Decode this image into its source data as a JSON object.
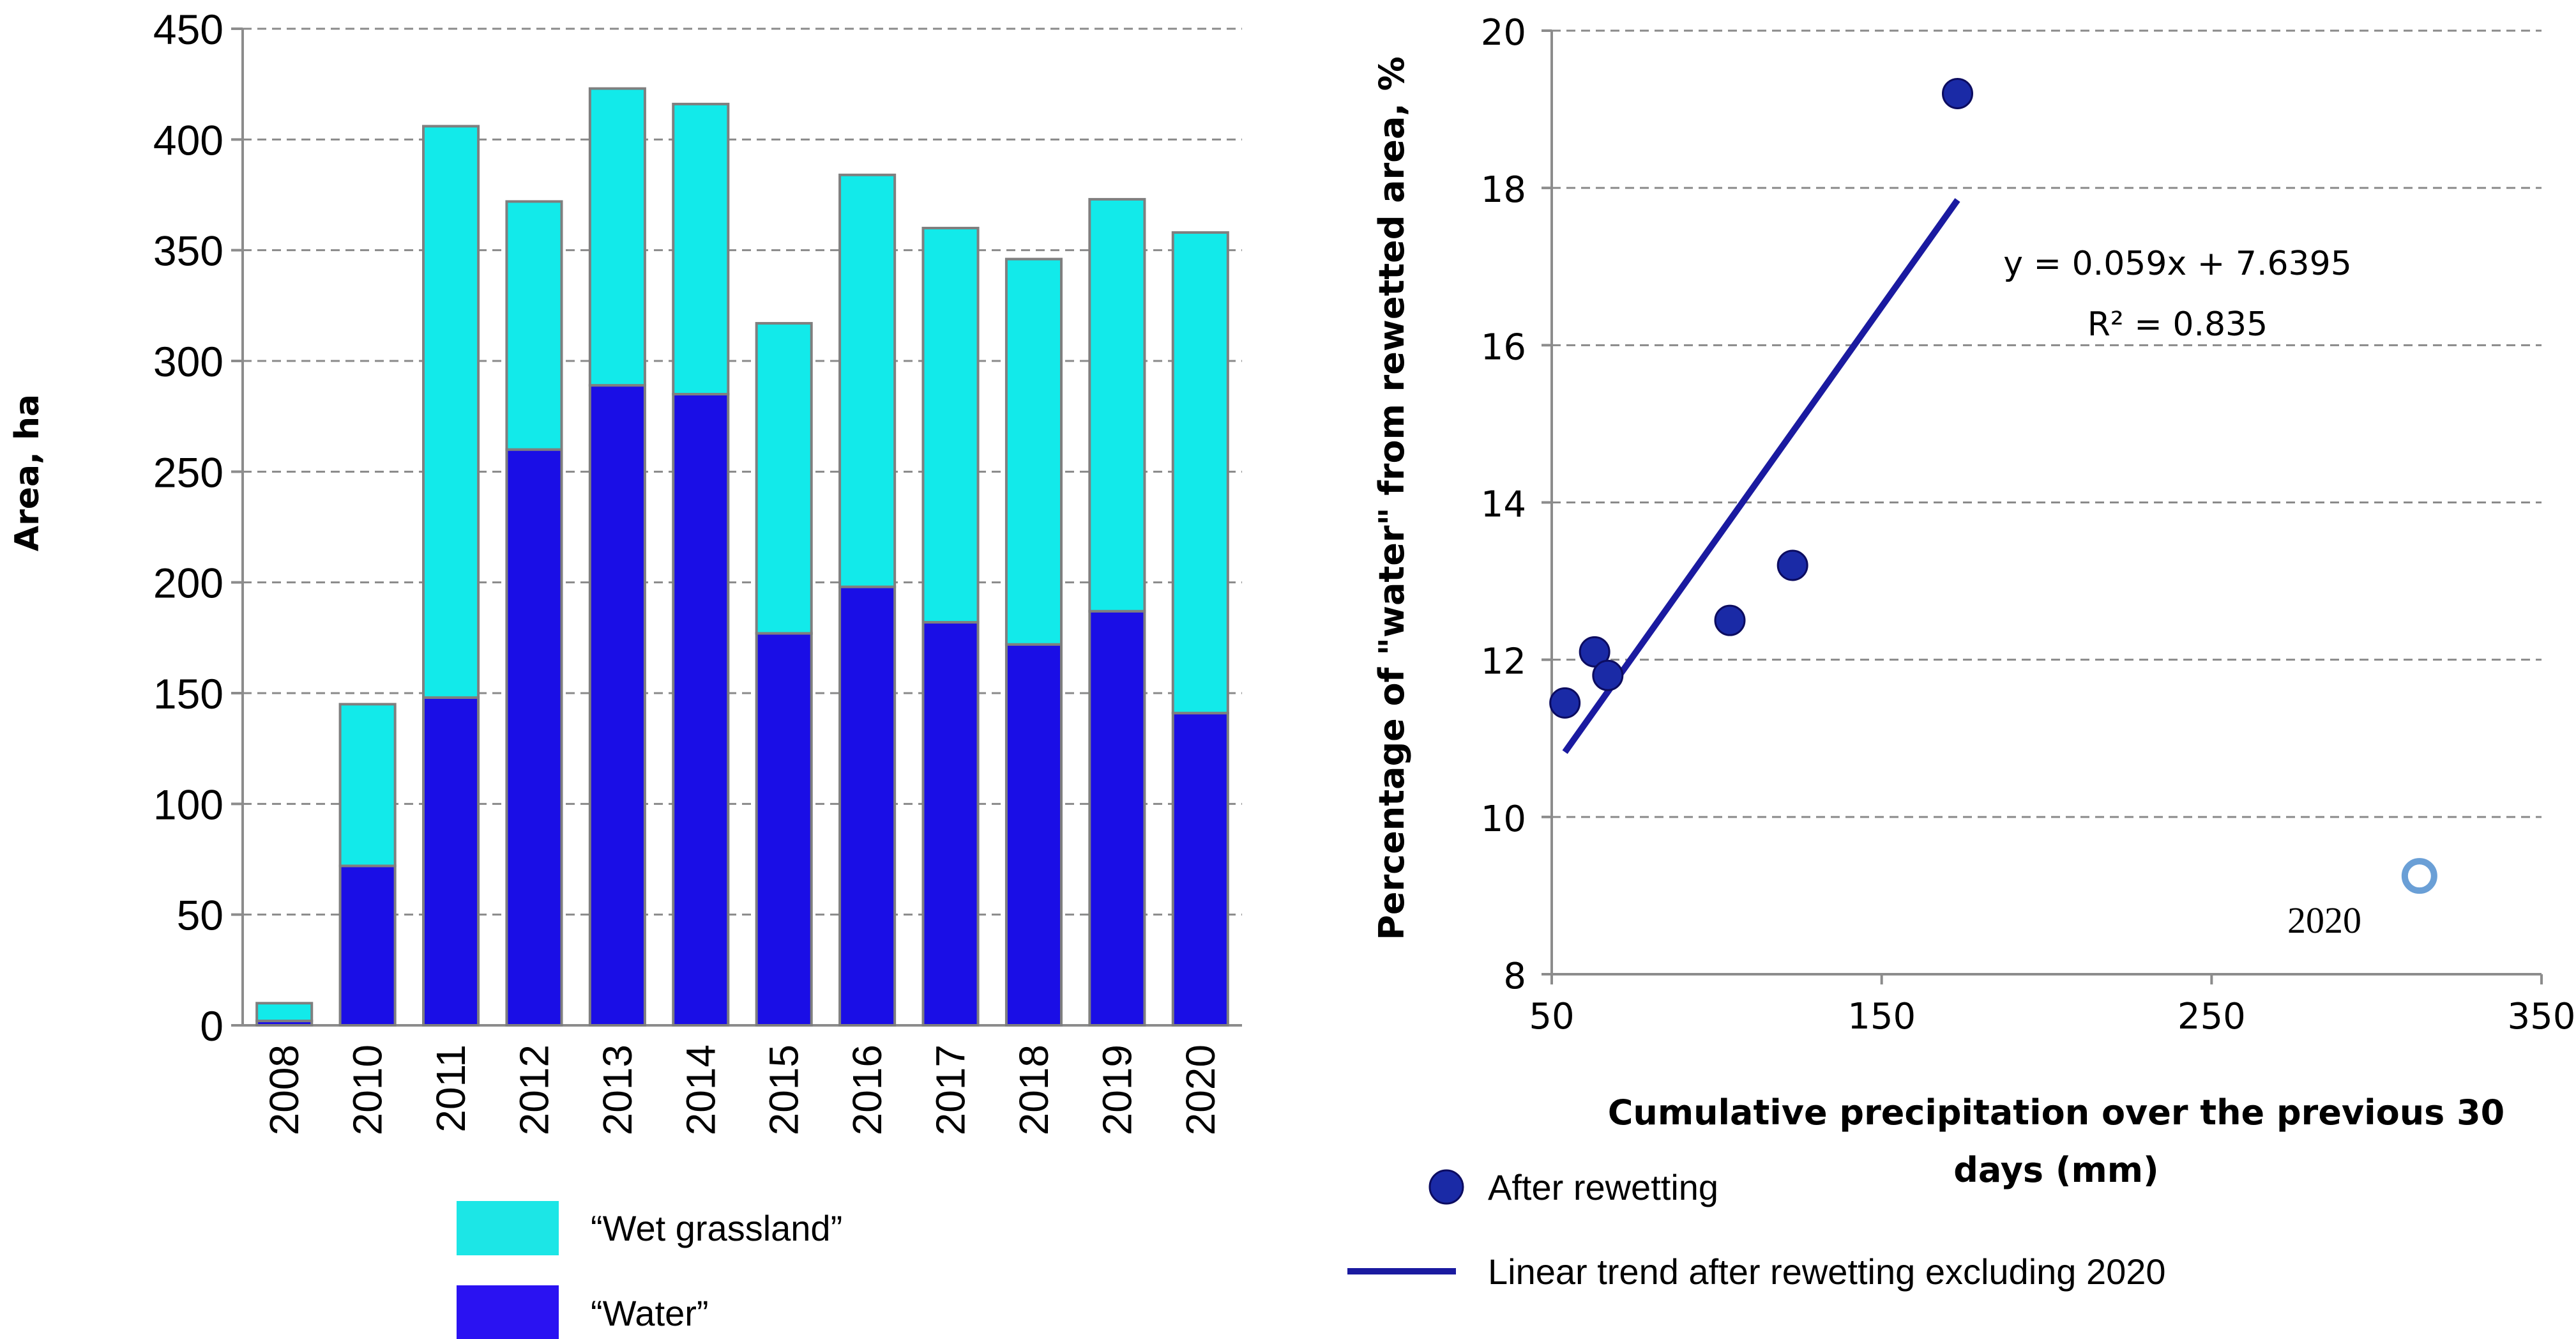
{
  "chart_data": [
    {
      "type": "bar",
      "stacked": true,
      "ylabel": "Area, ha",
      "ylim": [
        0,
        450
      ],
      "yticks": [
        0,
        50,
        100,
        150,
        200,
        250,
        300,
        350,
        400,
        450
      ],
      "ytick_labels": [
        "0",
        "50",
        "100",
        "150",
        "200",
        "250",
        "300",
        "350",
        "400",
        "450"
      ],
      "grid": true,
      "categories": [
        "2008",
        "2010",
        "2011",
        "2012",
        "2013",
        "2014",
        "2015",
        "2016",
        "2017",
        "2018",
        "2019",
        "2020"
      ],
      "series": [
        {
          "name": "“Water”",
          "color": "#1a0ee6",
          "values": [
            2,
            72,
            148,
            260,
            289,
            285,
            177,
            198,
            182,
            172,
            187,
            141
          ]
        },
        {
          "name": "“Wet grassland”",
          "color": "#12eaea",
          "values": [
            8,
            73,
            258,
            112,
            134,
            131,
            140,
            186,
            178,
            174,
            186,
            217
          ]
        }
      ],
      "legend": [
        {
          "label": "“Wet grassland”",
          "color": "#1ce6e6"
        },
        {
          "label": "“Water”",
          "color": "#2a12f2"
        }
      ]
    },
    {
      "type": "scatter",
      "xlabel_lines": [
        "Cumulative precipitation over the previous 30",
        "days (mm)"
      ],
      "ylabel": "Percentage of \"water\" from rewetted area, %",
      "xlim": [
        50,
        350
      ],
      "ylim": [
        8,
        20
      ],
      "xticks": [
        50,
        150,
        250,
        350
      ],
      "xtick_labels": [
        "50",
        "150",
        "250",
        "350"
      ],
      "yticks": [
        8,
        10,
        12,
        14,
        16,
        18,
        20
      ],
      "ytick_labels": [
        "8",
        "10",
        "12",
        "14",
        "16",
        "18",
        "20"
      ],
      "grid": "horizontal",
      "series": [
        {
          "name": "After rewetting",
          "color": "#1a2aa6",
          "points": [
            [
              54,
              11.45
            ],
            [
              63,
              12.1
            ],
            [
              67,
              11.8
            ],
            [
              104,
              12.5
            ],
            [
              123,
              13.2
            ],
            [
              173,
              19.2
            ]
          ]
        },
        {
          "name": "2020",
          "color": "#6a9fd6",
          "hollow": true,
          "points": [
            [
              313,
              9.25
            ]
          ]
        }
      ],
      "trendline": {
        "name": "Linear trend after rewetting excluding 2020",
        "color": "#1a1aa0",
        "slope": 0.059,
        "intercept": 7.6395,
        "x_range": [
          54,
          173
        ],
        "equation": "y = 0.059x + 7.6395",
        "r2_label": "R² = 0.835"
      },
      "point_annotation": "2020",
      "legend": [
        {
          "label": "After rewetting",
          "kind": "marker",
          "color": "#1a2aa6"
        },
        {
          "label": "Linear trend after rewetting excluding 2020",
          "kind": "line",
          "color": "#1a1aa0"
        }
      ]
    }
  ]
}
